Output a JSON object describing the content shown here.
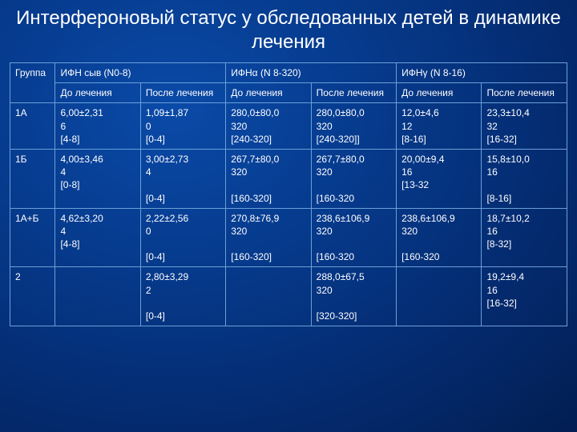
{
  "title": "Интерфероновый статус у обследованных детей в динамике лечения",
  "columns": {
    "group": "Группа",
    "ifn_syv": "ИФН сыв  (N0-8)",
    "ifn_a": "ИФНα (N 8-320)",
    "ifn_g": "ИФНγ (N 8-16)",
    "before": "До лечения",
    "after": "После лечения"
  },
  "rows": [
    {
      "group": "1А",
      "c1": "6,00±2,31\n6\n[4-8]",
      "c2": "1,09±1,87\n0\n[0-4]",
      "c3": "280,0±80,0\n320\n[240-320]",
      "c4": "280,0±80,0\n320\n[240-320]]",
      "c5": "12,0±4,6\n12\n[8-16]",
      "c6": "23,3±10,4\n32\n[16-32]"
    },
    {
      "group": "1Б",
      "c1": "4,00±3,46\n4\n[0-8]",
      "c2": "3,00±2,73\n4\n\n[0-4]",
      "c3": "267,7±80,0\n320\n\n[160-320]",
      "c4": "267,7±80,0\n320\n\n[160-320",
      "c5": "20,00±9,4\n16\n[13-32",
      "c6": "15,8±10,0\n16\n\n[8-16]"
    },
    {
      "group": "1А+Б",
      "c1": "4,62±3,20\n4\n[4-8]",
      "c2": "2,22±2,56\n0\n\n[0-4]",
      "c3": "270,8±76,9\n320\n\n[160-320]",
      "c4": "238,6±106,9\n320\n\n[160-320",
      "c5": "238,6±106,9\n320\n\n[160-320",
      "c6": "18,7±10,2\n16\n[8-32]"
    },
    {
      "group": "2",
      "c1": "",
      "c2": "2,80±3,29\n2\n\n[0-4]",
      "c3": "",
      "c4": "288,0±67,5\n320\n\n[320-320]",
      "c5": "",
      "c6": "19,2±9,4\n16\n[16-32]"
    }
  ],
  "style": {
    "title_fontsize": 24,
    "cell_fontsize": 12,
    "border_color": "#6aa0d8",
    "bg_gradient_center": "#0a4aa8",
    "bg_gradient_edge": "#021e52",
    "text_color": "#ffffff"
  }
}
